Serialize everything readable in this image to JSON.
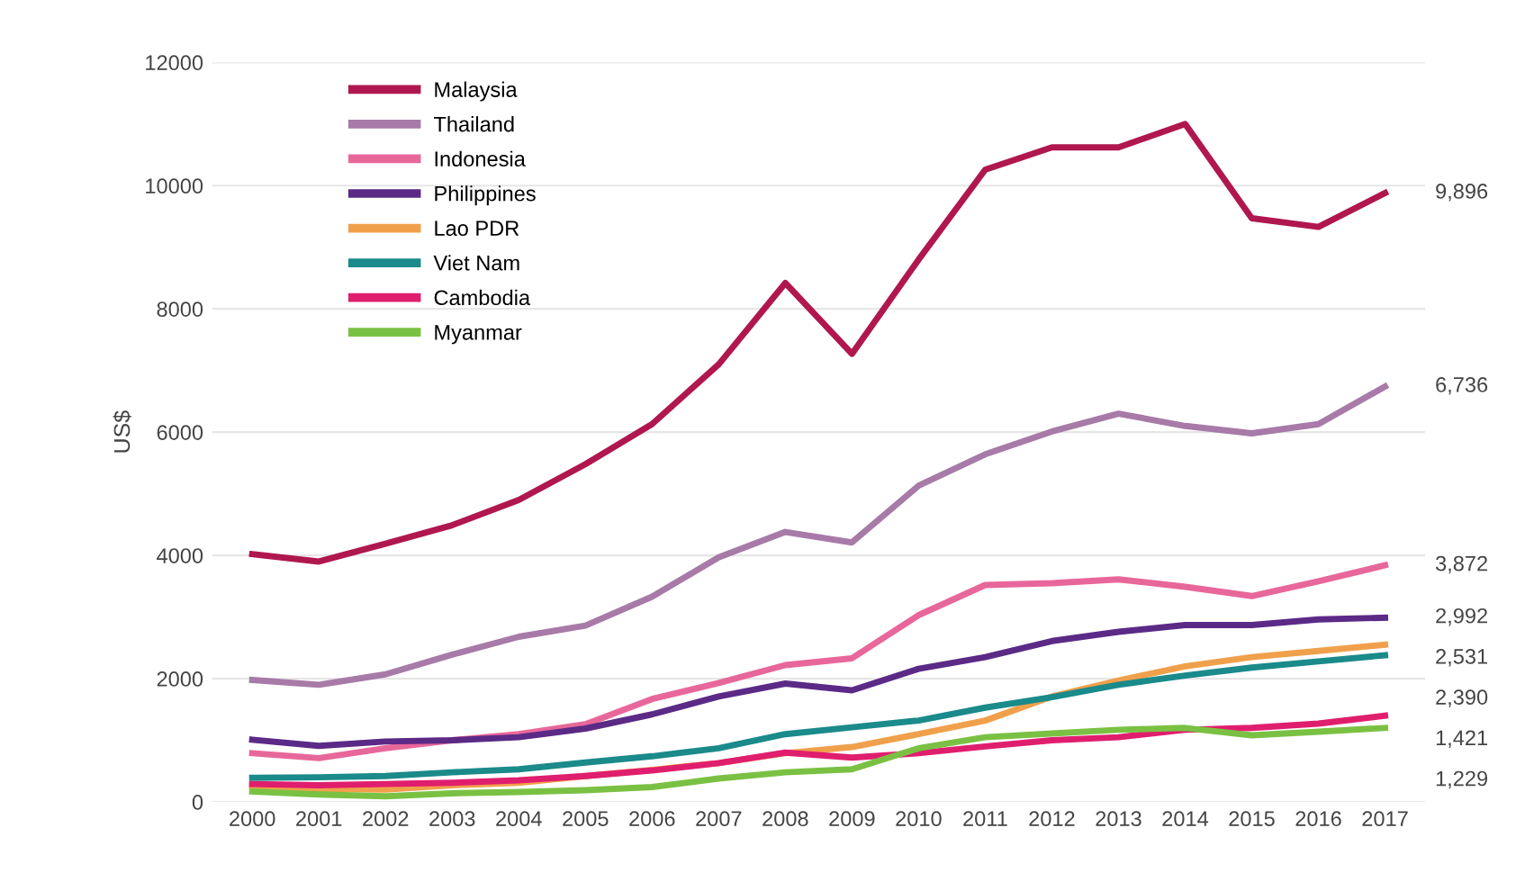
{
  "chart_data": {
    "type": "line",
    "ylabel": "US$",
    "categories": [
      "2000",
      "2001",
      "2002",
      "2003",
      "2004",
      "2005",
      "2006",
      "2007",
      "2008",
      "2009",
      "2010",
      "2011",
      "2012",
      "2013",
      "2014",
      "2015",
      "2016",
      "2017"
    ],
    "ylim": [
      0,
      12000
    ],
    "yticks": [
      0,
      2000,
      4000,
      6000,
      8000,
      10000,
      12000
    ],
    "grid": "y",
    "legend": "top left",
    "marker": "none",
    "line_style": "solid",
    "annotations": [
      "9,896",
      "6,736",
      "3,872",
      "2,992",
      "2,531",
      "2,390",
      "1,421",
      "1,229"
    ],
    "series": [
      {
        "name": "Malaysia",
        "color": "#b0174f",
        "values": [
          4020,
          3900,
          4190,
          4490,
          4900,
          5480,
          6130,
          7100,
          8420,
          7270,
          8800,
          10260,
          10620,
          10620,
          11000,
          9470,
          9330,
          9880
        ]
      },
      {
        "name": "Thailand",
        "color": "#a77aa8",
        "values": [
          1980,
          1900,
          2070,
          2390,
          2680,
          2860,
          3330,
          3970,
          4380,
          4210,
          5130,
          5640,
          6010,
          6300,
          6100,
          5980,
          6130,
          6740
        ]
      },
      {
        "name": "Indonesia",
        "color": "#e8679a",
        "values": [
          790,
          710,
          870,
          1000,
          1100,
          1260,
          1670,
          1930,
          2220,
          2330,
          3030,
          3520,
          3550,
          3610,
          3490,
          3340,
          3580,
          3840
        ]
      },
      {
        "name": "Philippines",
        "color": "#5b2a86",
        "values": [
          1010,
          910,
          980,
          1000,
          1050,
          1190,
          1420,
          1710,
          1920,
          1810,
          2160,
          2350,
          2610,
          2760,
          2870,
          2870,
          2960,
          2990
        ]
      },
      {
        "name": "Lao PDR",
        "color": "#f0a04b",
        "values": [
          260,
          210,
          200,
          270,
          310,
          420,
          520,
          630,
          790,
          890,
          1100,
          1320,
          1710,
          1970,
          2200,
          2350,
          2450,
          2550
        ]
      },
      {
        "name": "Viet Nam",
        "color": "#1a8a8a",
        "values": [
          390,
          400,
          420,
          480,
          530,
          640,
          740,
          870,
          1100,
          1210,
          1320,
          1530,
          1700,
          1900,
          2050,
          2180,
          2280,
          2380
        ]
      },
      {
        "name": "Cambodia",
        "color": "#e01e6e",
        "values": [
          290,
          270,
          290,
          310,
          350,
          420,
          510,
          630,
          800,
          720,
          790,
          900,
          1000,
          1050,
          1170,
          1200,
          1270,
          1400
        ]
      },
      {
        "name": "Myanmar",
        "color": "#7ac143",
        "values": [
          170,
          120,
          90,
          140,
          160,
          190,
          240,
          380,
          480,
          530,
          870,
          1050,
          1110,
          1170,
          1200,
          1080,
          1140,
          1200
        ]
      }
    ]
  }
}
